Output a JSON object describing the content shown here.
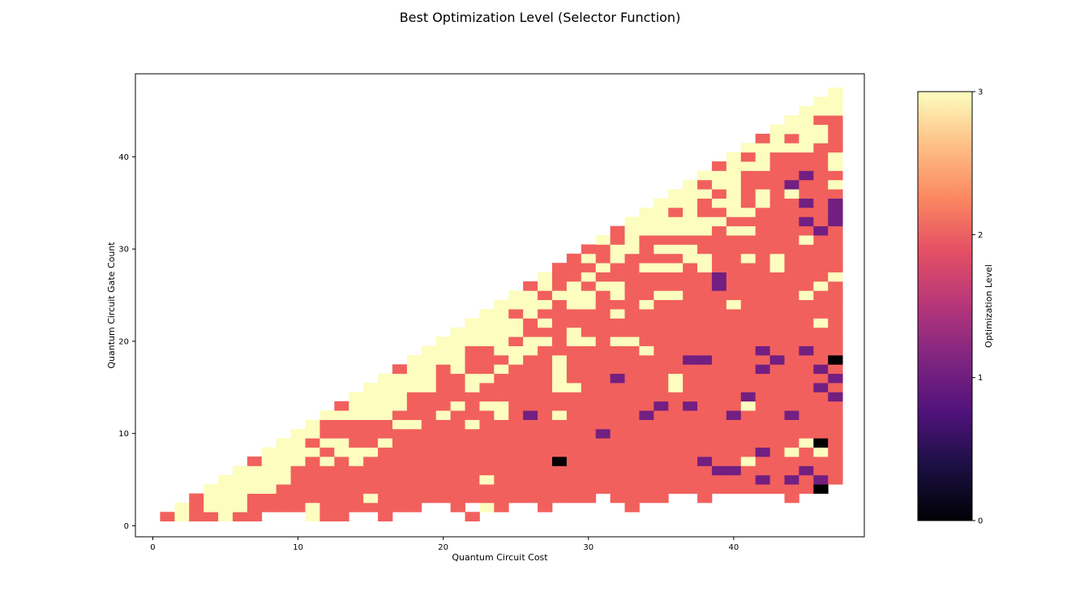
{
  "chart_data": {
    "type": "heatmap",
    "title": "Best Optimization Level (Selector Function)",
    "xlabel": "Quantum Circuit Cost",
    "ylabel": "Quantum Circuit Gate Count",
    "xlim": [
      -1.2,
      49
    ],
    "ylim": [
      -1.2,
      49
    ],
    "xticks": [
      0,
      10,
      20,
      30,
      40
    ],
    "yticks": [
      0,
      10,
      20,
      30,
      40
    ],
    "colorbar": {
      "label": "Optimization Level",
      "min": 0,
      "max": 3,
      "ticks": [
        0,
        1,
        2,
        3
      ],
      "colormap": "magma"
    },
    "level_colors": {
      "0": "#000000",
      "1": "#721f81",
      "2": "#f1605d",
      "3": "#fcfdbf"
    },
    "grid": false,
    "cells_note": "z: map of gate count (y) -> cost columns (x) with optimization level 0-3; missing cells are empty",
    "z": {
      "1": {
        "1": 2,
        "2": 3,
        "3": 2,
        "4": 2,
        "5": 3,
        "6": 2,
        "7": 2,
        "11": 3,
        "12": 2,
        "13": 2,
        "16": 2,
        "22": 2
      },
      "2": {
        "2": 3,
        "3": 2,
        "4": 3,
        "5": 3,
        "6": 3,
        "7": 2,
        "8": 2,
        "9": 2,
        "10": 2,
        "11": 3,
        "12": 2,
        "13": 2,
        "14": 2,
        "15": 2,
        "16": 2,
        "17": 2,
        "18": 2,
        "21": 2,
        "23": 3,
        "24": 2,
        "27": 2,
        "33": 2
      },
      "3": {
        "3": 2,
        "4": 3,
        "5": 3,
        "6": 3,
        "7": 2,
        "8": 2,
        "9": 2,
        "10": 2,
        "11": 2,
        "12": 2,
        "13": 2,
        "14": 2,
        "15": 3,
        "16": 2,
        "17": 2,
        "18": 2,
        "19": 2,
        "20": 2,
        "21": 2,
        "22": 2,
        "23": 2,
        "24": 2,
        "25": 2,
        "26": 2,
        "27": 2,
        "28": 2,
        "29": 2,
        "30": 2,
        "32": 2,
        "33": 2,
        "34": 2,
        "35": 2,
        "38": 2,
        "44": 2
      },
      "4": {
        "4": 3,
        "5": 3,
        "6": 3,
        "7": 3,
        "8": 3,
        "9": 2,
        "10": 2,
        "11": 2,
        "12": 2,
        "13": 2,
        "14": 2,
        "15": 2,
        "16": 2,
        "17": 2,
        "18": 2,
        "19": 2,
        "20": 2,
        "21": 2,
        "22": 2,
        "23": 2,
        "24": 2,
        "25": 2,
        "26": 2,
        "27": 2,
        "28": 2,
        "29": 2,
        "30": 2,
        "31": 2,
        "32": 2,
        "33": 2,
        "34": 2,
        "35": 2,
        "36": 2,
        "37": 2,
        "38": 2,
        "39": 2,
        "40": 2,
        "41": 2,
        "42": 2,
        "43": 2,
        "44": 2,
        "45": 2,
        "46": 0
      },
      "5": {
        "5": 3,
        "6": 3,
        "7": 3,
        "8": 3,
        "9": 3,
        "10": 2,
        "11": 2,
        "12": 2,
        "13": 2,
        "14": 2,
        "15": 2,
        "16": 2,
        "17": 2,
        "18": 2,
        "19": 2,
        "20": 2,
        "21": 2,
        "22": 2,
        "23": 3,
        "24": 2,
        "25": 2,
        "26": 2,
        "27": 2,
        "28": 2,
        "29": 2,
        "30": 2,
        "31": 2,
        "32": 2,
        "33": 2,
        "34": 2,
        "35": 2,
        "36": 2,
        "37": 2,
        "38": 2,
        "39": 2,
        "40": 2,
        "41": 2,
        "42": 1,
        "43": 2,
        "44": 1,
        "45": 2,
        "46": 1,
        "47": 2
      },
      "6": {
        "6": 3,
        "7": 3,
        "8": 3,
        "9": 3,
        "10": 2,
        "11": 2,
        "12": 2,
        "13": 2,
        "14": 2,
        "15": 2,
        "16": 2,
        "17": 2,
        "18": 2,
        "19": 2,
        "20": 2,
        "21": 2,
        "22": 2,
        "23": 2,
        "24": 2,
        "25": 2,
        "26": 2,
        "27": 2,
        "28": 2,
        "29": 2,
        "30": 2,
        "31": 2,
        "32": 2,
        "33": 2,
        "34": 2,
        "35": 2,
        "36": 2,
        "37": 2,
        "38": 2,
        "39": 1,
        "40": 1,
        "41": 2,
        "42": 2,
        "43": 2,
        "44": 2,
        "45": 1,
        "46": 2,
        "47": 2
      },
      "7": {
        "7": 2,
        "8": 3,
        "9": 3,
        "10": 3,
        "11": 2,
        "12": 3,
        "13": 2,
        "14": 3,
        "15": 2,
        "16": 2,
        "17": 2,
        "18": 2,
        "19": 2,
        "20": 2,
        "21": 2,
        "22": 2,
        "23": 2,
        "24": 2,
        "25": 2,
        "26": 2,
        "27": 2,
        "28": 0,
        "29": 2,
        "30": 2,
        "31": 2,
        "32": 2,
        "33": 2,
        "34": 2,
        "35": 2,
        "36": 2,
        "37": 2,
        "38": 1,
        "39": 2,
        "40": 2,
        "41": 3,
        "42": 2,
        "43": 2,
        "44": 2,
        "45": 2,
        "46": 2,
        "47": 2
      },
      "8": {
        "8": 3,
        "9": 3,
        "10": 3,
        "11": 3,
        "12": 2,
        "13": 3,
        "14": 3,
        "15": 3,
        "16": 2,
        "17": 2,
        "18": 2,
        "19": 2,
        "20": 2,
        "21": 2,
        "22": 2,
        "23": 2,
        "24": 2,
        "25": 2,
        "26": 2,
        "27": 2,
        "28": 2,
        "29": 2,
        "30": 2,
        "31": 2,
        "32": 2,
        "33": 2,
        "34": 2,
        "35": 2,
        "36": 2,
        "37": 2,
        "38": 2,
        "39": 2,
        "40": 2,
        "41": 2,
        "42": 1,
        "43": 2,
        "44": 3,
        "45": 2,
        "46": 3,
        "47": 2
      },
      "9": {
        "9": 3,
        "10": 3,
        "11": 2,
        "12": 3,
        "13": 3,
        "14": 2,
        "15": 2,
        "16": 3,
        "17": 2,
        "18": 2,
        "19": 2,
        "20": 2,
        "21": 2,
        "22": 2,
        "23": 2,
        "24": 2,
        "25": 2,
        "26": 2,
        "27": 2,
        "28": 2,
        "29": 2,
        "30": 2,
        "31": 2,
        "32": 2,
        "33": 2,
        "34": 2,
        "35": 2,
        "36": 2,
        "37": 2,
        "38": 2,
        "39": 2,
        "40": 2,
        "41": 2,
        "42": 2,
        "43": 2,
        "44": 2,
        "45": 3,
        "46": 0,
        "47": 2
      },
      "10": {
        "10": 3,
        "11": 3,
        "12": 2,
        "13": 2,
        "14": 2,
        "15": 2,
        "16": 2,
        "17": 2,
        "18": 2,
        "19": 2,
        "20": 2,
        "21": 2,
        "22": 2,
        "23": 2,
        "24": 2,
        "25": 2,
        "26": 2,
        "27": 2,
        "28": 2,
        "29": 2,
        "30": 2,
        "31": 1,
        "32": 2,
        "33": 2,
        "34": 2,
        "35": 2,
        "36": 2,
        "37": 2,
        "38": 2,
        "39": 2,
        "40": 2,
        "41": 2,
        "42": 2,
        "43": 2,
        "44": 2,
        "45": 2,
        "46": 2,
        "47": 2
      },
      "11": {
        "11": 3,
        "12": 2,
        "13": 2,
        "14": 2,
        "15": 2,
        "16": 2,
        "17": 3,
        "18": 3,
        "19": 2,
        "20": 2,
        "21": 2,
        "22": 3,
        "23": 2,
        "24": 2,
        "25": 2,
        "26": 2,
        "27": 2,
        "28": 2,
        "29": 2,
        "30": 2,
        "31": 2,
        "32": 2,
        "33": 2,
        "34": 2,
        "35": 2,
        "36": 2,
        "37": 2,
        "38": 2,
        "39": 2,
        "40": 2,
        "41": 2,
        "42": 2,
        "43": 2,
        "44": 2,
        "45": 2,
        "46": 2,
        "47": 2
      },
      "12": {
        "12": 3,
        "13": 3,
        "14": 3,
        "15": 3,
        "16": 3,
        "17": 2,
        "18": 2,
        "19": 2,
        "20": 3,
        "21": 2,
        "22": 2,
        "23": 2,
        "24": 3,
        "25": 2,
        "26": 1,
        "27": 2,
        "28": 3,
        "29": 2,
        "30": 2,
        "31": 2,
        "32": 2,
        "33": 2,
        "34": 1,
        "35": 2,
        "36": 2,
        "37": 2,
        "38": 2,
        "39": 2,
        "40": 1,
        "41": 2,
        "42": 2,
        "43": 2,
        "44": 1,
        "45": 2,
        "46": 2,
        "47": 2
      },
      "13": {
        "13": 2,
        "14": 3,
        "15": 3,
        "16": 3,
        "17": 3,
        "18": 2,
        "19": 2,
        "20": 2,
        "21": 3,
        "22": 2,
        "23": 3,
        "24": 3,
        "25": 2,
        "26": 2,
        "27": 2,
        "28": 2,
        "29": 2,
        "30": 2,
        "31": 2,
        "32": 2,
        "33": 2,
        "34": 2,
        "35": 1,
        "36": 2,
        "37": 1,
        "38": 2,
        "39": 2,
        "40": 2,
        "41": 3,
        "42": 2,
        "43": 2,
        "44": 2,
        "45": 2,
        "46": 2,
        "47": 2
      },
      "14": {
        "14": 3,
        "15": 3,
        "16": 3,
        "17": 3,
        "18": 2,
        "19": 2,
        "20": 2,
        "21": 2,
        "22": 2,
        "23": 2,
        "24": 2,
        "25": 2,
        "26": 2,
        "27": 2,
        "28": 2,
        "29": 2,
        "30": 2,
        "31": 2,
        "32": 2,
        "33": 2,
        "34": 2,
        "35": 2,
        "36": 2,
        "37": 2,
        "38": 2,
        "39": 2,
        "40": 2,
        "41": 1,
        "42": 2,
        "43": 2,
        "44": 2,
        "45": 2,
        "46": 2,
        "47": 1
      },
      "15": {
        "15": 3,
        "16": 3,
        "17": 3,
        "18": 3,
        "19": 3,
        "20": 2,
        "21": 2,
        "22": 3,
        "23": 2,
        "24": 2,
        "25": 2,
        "26": 2,
        "27": 2,
        "28": 3,
        "29": 3,
        "30": 2,
        "31": 2,
        "32": 2,
        "33": 2,
        "34": 2,
        "35": 2,
        "36": 3,
        "37": 2,
        "38": 2,
        "39": 2,
        "40": 2,
        "41": 2,
        "42": 2,
        "43": 2,
        "44": 2,
        "45": 2,
        "46": 1,
        "47": 2
      },
      "16": {
        "16": 3,
        "17": 3,
        "18": 3,
        "19": 3,
        "20": 2,
        "21": 2,
        "22": 3,
        "23": 3,
        "24": 2,
        "25": 2,
        "26": 2,
        "27": 2,
        "28": 3,
        "29": 2,
        "30": 2,
        "31": 2,
        "32": 1,
        "33": 2,
        "34": 2,
        "35": 2,
        "36": 3,
        "37": 2,
        "38": 2,
        "39": 2,
        "40": 2,
        "41": 2,
        "42": 2,
        "43": 2,
        "44": 2,
        "45": 2,
        "46": 2,
        "47": 1
      },
      "17": {
        "17": 2,
        "18": 3,
        "19": 3,
        "20": 2,
        "21": 3,
        "22": 2,
        "23": 2,
        "24": 3,
        "25": 2,
        "26": 2,
        "27": 2,
        "28": 3,
        "29": 2,
        "30": 2,
        "31": 2,
        "32": 2,
        "33": 2,
        "34": 2,
        "35": 2,
        "36": 2,
        "37": 2,
        "38": 2,
        "39": 2,
        "40": 2,
        "41": 2,
        "42": 1,
        "43": 2,
        "44": 2,
        "45": 2,
        "46": 1,
        "47": 2
      },
      "18": {
        "18": 3,
        "19": 3,
        "20": 3,
        "21": 3,
        "22": 2,
        "23": 2,
        "24": 2,
        "25": 3,
        "26": 2,
        "27": 2,
        "28": 3,
        "29": 2,
        "30": 2,
        "31": 2,
        "32": 2,
        "33": 2,
        "34": 2,
        "35": 2,
        "36": 2,
        "37": 1,
        "38": 1,
        "39": 2,
        "40": 2,
        "41": 2,
        "42": 2,
        "43": 1,
        "44": 2,
        "45": 2,
        "46": 2,
        "47": 0
      },
      "19": {
        "19": 3,
        "20": 3,
        "21": 3,
        "22": 2,
        "23": 2,
        "24": 3,
        "25": 3,
        "26": 3,
        "27": 2,
        "28": 2,
        "29": 2,
        "30": 2,
        "31": 2,
        "32": 2,
        "33": 2,
        "34": 3,
        "35": 2,
        "36": 2,
        "37": 2,
        "38": 2,
        "39": 2,
        "40": 2,
        "41": 2,
        "42": 1,
        "43": 2,
        "44": 2,
        "45": 1,
        "46": 2,
        "47": 2
      },
      "20": {
        "20": 3,
        "21": 3,
        "22": 3,
        "23": 3,
        "24": 3,
        "25": 2,
        "26": 3,
        "27": 3,
        "28": 2,
        "29": 3,
        "30": 3,
        "31": 2,
        "32": 3,
        "33": 3,
        "34": 2,
        "35": 2,
        "36": 2,
        "37": 2,
        "38": 2,
        "39": 2,
        "40": 2,
        "41": 2,
        "42": 2,
        "43": 2,
        "44": 2,
        "45": 2,
        "46": 2,
        "47": 2
      },
      "21": {
        "21": 3,
        "22": 3,
        "23": 3,
        "24": 3,
        "25": 3,
        "26": 2,
        "27": 2,
        "28": 2,
        "29": 3,
        "30": 2,
        "31": 2,
        "32": 2,
        "33": 2,
        "34": 2,
        "35": 2,
        "36": 2,
        "37": 2,
        "38": 2,
        "39": 2,
        "40": 2,
        "41": 2,
        "42": 2,
        "43": 2,
        "44": 2,
        "45": 2,
        "46": 2,
        "47": 2
      },
      "22": {
        "22": 3,
        "23": 3,
        "24": 3,
        "25": 3,
        "26": 2,
        "27": 3,
        "28": 2,
        "29": 2,
        "30": 2,
        "31": 2,
        "32": 2,
        "33": 2,
        "34": 2,
        "35": 2,
        "36": 2,
        "37": 2,
        "38": 2,
        "39": 2,
        "40": 2,
        "41": 2,
        "42": 2,
        "43": 2,
        "44": 2,
        "45": 2,
        "46": 3,
        "47": 2
      },
      "23": {
        "23": 3,
        "24": 3,
        "25": 2,
        "26": 3,
        "27": 2,
        "28": 2,
        "29": 2,
        "30": 2,
        "31": 2,
        "32": 3,
        "33": 2,
        "34": 2,
        "35": 2,
        "36": 2,
        "37": 2,
        "38": 2,
        "39": 2,
        "40": 2,
        "41": 2,
        "42": 2,
        "43": 2,
        "44": 2,
        "45": 2,
        "46": 2,
        "47": 2
      },
      "24": {
        "24": 3,
        "25": 3,
        "26": 3,
        "27": 3,
        "28": 2,
        "29": 3,
        "30": 3,
        "31": 2,
        "32": 2,
        "33": 2,
        "34": 3,
        "35": 2,
        "36": 2,
        "37": 2,
        "38": 2,
        "39": 2,
        "40": 3,
        "41": 2,
        "42": 2,
        "43": 2,
        "44": 2,
        "45": 2,
        "46": 2,
        "47": 2
      },
      "25": {
        "25": 3,
        "26": 3,
        "27": 2,
        "28": 3,
        "29": 3,
        "30": 3,
        "31": 2,
        "32": 3,
        "33": 2,
        "34": 2,
        "35": 3,
        "36": 3,
        "37": 2,
        "38": 2,
        "39": 2,
        "40": 2,
        "41": 2,
        "42": 2,
        "43": 2,
        "44": 2,
        "45": 3,
        "46": 2,
        "47": 2
      },
      "26": {
        "26": 2,
        "27": 3,
        "28": 2,
        "29": 3,
        "30": 2,
        "31": 3,
        "32": 3,
        "33": 2,
        "34": 2,
        "35": 2,
        "36": 2,
        "37": 2,
        "38": 2,
        "39": 1,
        "40": 2,
        "41": 2,
        "42": 2,
        "43": 2,
        "44": 2,
        "45": 2,
        "46": 3,
        "47": 2
      },
      "27": {
        "27": 3,
        "28": 2,
        "29": 2,
        "30": 3,
        "31": 2,
        "32": 2,
        "33": 2,
        "34": 2,
        "35": 2,
        "36": 2,
        "37": 2,
        "38": 2,
        "39": 1,
        "40": 2,
        "41": 2,
        "42": 2,
        "43": 2,
        "44": 2,
        "45": 2,
        "46": 2,
        "47": 3
      },
      "28": {
        "28": 2,
        "29": 2,
        "30": 2,
        "31": 3,
        "32": 2,
        "33": 2,
        "34": 3,
        "35": 3,
        "36": 3,
        "37": 2,
        "38": 3,
        "39": 2,
        "40": 2,
        "41": 2,
        "42": 2,
        "43": 3,
        "44": 2,
        "45": 2,
        "46": 2,
        "47": 2
      },
      "29": {
        "29": 2,
        "30": 3,
        "31": 2,
        "32": 3,
        "33": 2,
        "34": 2,
        "35": 2,
        "36": 2,
        "37": 3,
        "38": 3,
        "39": 2,
        "40": 2,
        "41": 3,
        "42": 2,
        "43": 3,
        "44": 2,
        "45": 2,
        "46": 2,
        "47": 2
      },
      "30": {
        "30": 2,
        "31": 2,
        "32": 3,
        "33": 3,
        "34": 2,
        "35": 3,
        "36": 3,
        "37": 3,
        "38": 2,
        "39": 2,
        "40": 2,
        "41": 2,
        "42": 2,
        "43": 2,
        "44": 2,
        "45": 2,
        "46": 2,
        "47": 2
      },
      "31": {
        "31": 3,
        "32": 2,
        "33": 3,
        "34": 2,
        "35": 2,
        "36": 2,
        "37": 2,
        "38": 2,
        "39": 2,
        "40": 2,
        "41": 2,
        "42": 2,
        "43": 2,
        "44": 2,
        "45": 3,
        "46": 2,
        "47": 2
      },
      "32": {
        "32": 2,
        "33": 3,
        "34": 3,
        "35": 3,
        "36": 3,
        "37": 3,
        "38": 3,
        "39": 2,
        "40": 3,
        "41": 3,
        "42": 2,
        "43": 2,
        "44": 2,
        "45": 2,
        "46": 1,
        "47": 2
      },
      "33": {
        "33": 3,
        "34": 3,
        "35": 3,
        "36": 3,
        "37": 3,
        "38": 3,
        "39": 3,
        "40": 2,
        "41": 2,
        "42": 2,
        "43": 2,
        "44": 2,
        "45": 1,
        "46": 2,
        "47": 1
      },
      "34": {
        "34": 3,
        "35": 3,
        "36": 2,
        "37": 3,
        "38": 2,
        "39": 2,
        "40": 3,
        "41": 3,
        "42": 2,
        "43": 2,
        "44": 2,
        "45": 2,
        "46": 2,
        "47": 1
      },
      "35": {
        "35": 3,
        "36": 3,
        "37": 3,
        "38": 2,
        "39": 3,
        "40": 3,
        "41": 2,
        "42": 3,
        "43": 2,
        "44": 2,
        "45": 1,
        "46": 2,
        "47": 1
      },
      "36": {
        "36": 3,
        "37": 3,
        "38": 3,
        "39": 2,
        "40": 3,
        "41": 2,
        "42": 3,
        "43": 2,
        "44": 3,
        "45": 2,
        "46": 2,
        "47": 2
      },
      "37": {
        "37": 3,
        "38": 2,
        "39": 3,
        "40": 3,
        "41": 2,
        "42": 2,
        "43": 2,
        "44": 1,
        "45": 2,
        "46": 2,
        "47": 3
      },
      "38": {
        "38": 3,
        "39": 3,
        "40": 3,
        "41": 2,
        "42": 2,
        "43": 2,
        "44": 2,
        "45": 1,
        "46": 2,
        "47": 2
      },
      "39": {
        "39": 2,
        "40": 3,
        "41": 3,
        "42": 3,
        "43": 2,
        "44": 2,
        "45": 2,
        "46": 2,
        "47": 3
      },
      "40": {
        "40": 3,
        "41": 2,
        "42": 3,
        "43": 2,
        "44": 2,
        "45": 2,
        "46": 2,
        "47": 3
      },
      "41": {
        "41": 3,
        "42": 3,
        "43": 3,
        "44": 3,
        "45": 3,
        "46": 2,
        "47": 2
      },
      "42": {
        "42": 2,
        "43": 3,
        "44": 2,
        "45": 3,
        "46": 3,
        "47": 2
      },
      "43": {
        "43": 3,
        "44": 3,
        "45": 3,
        "46": 3,
        "47": 2
      },
      "44": {
        "44": 3,
        "45": 3,
        "46": 2,
        "47": 2
      },
      "45": {
        "45": 3,
        "46": 3,
        "47": 3
      },
      "46": {
        "46": 3,
        "47": 3
      },
      "47": {
        "47": 3
      }
    }
  }
}
